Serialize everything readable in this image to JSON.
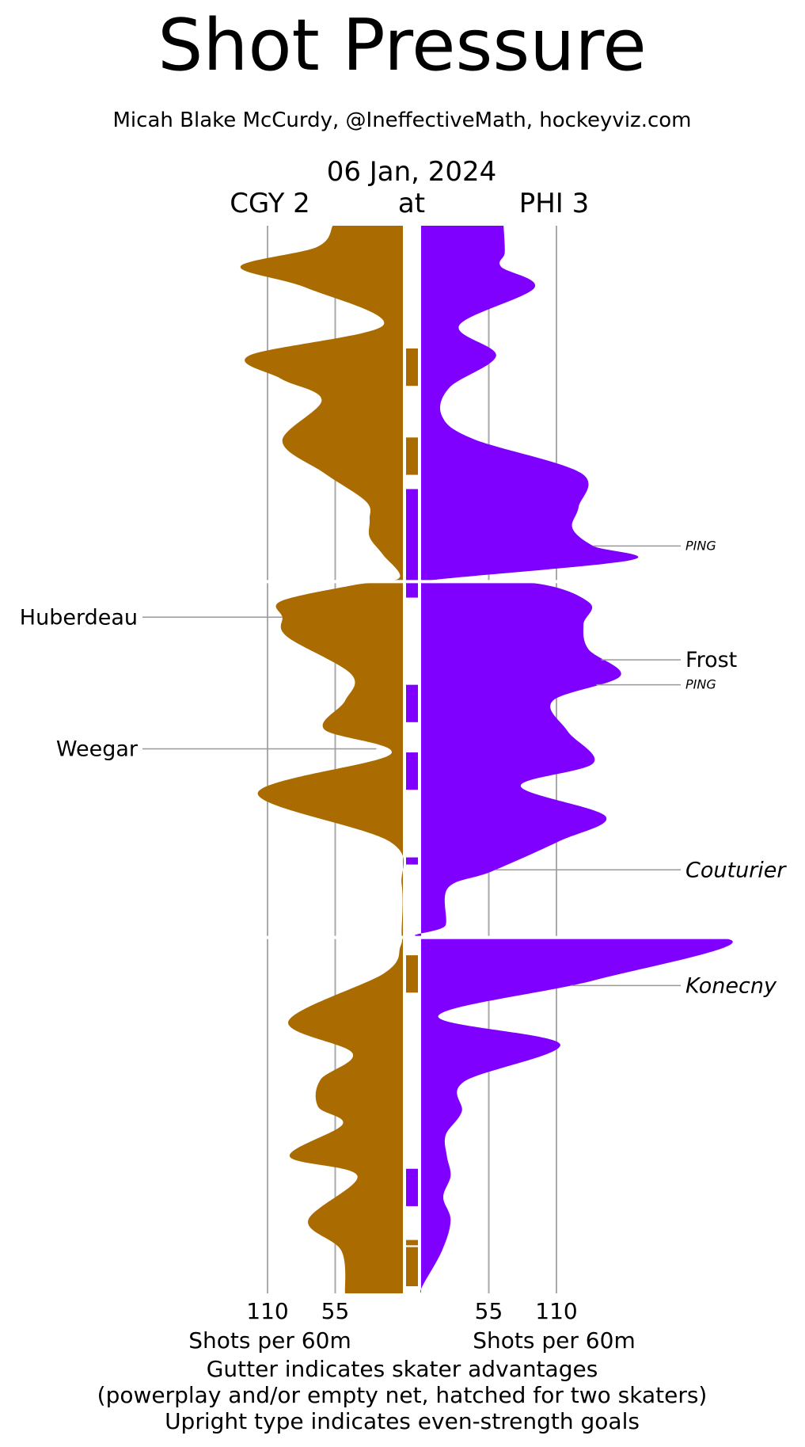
{
  "chart_data": {
    "type": "area",
    "title": "Shot Pressure",
    "subtitle": "Micah Blake McCurdy, @IneffectiveMath, hockeyviz.com",
    "date": "06 Jan, 2024",
    "at_label": "at",
    "teams": {
      "away": {
        "label": "CGY 2",
        "color": "#AA6C00"
      },
      "home": {
        "label": "PHI 3",
        "color": "#8000FF"
      }
    },
    "x_ticks": [
      110,
      55
    ],
    "x_max": 165,
    "xlabel": "Shots per 60m",
    "game_minutes": 60,
    "period_minutes": 20,
    "footer": [
      "Gutter indicates skater advantages",
      "(powerplay and/or empty net, hatched for two skaters)",
      "Upright type indicates even-strength goals"
    ],
    "away_pressure": {
      "t": [
        0,
        1.2,
        2.3,
        3.5,
        5.6,
        7.3,
        8.6,
        9.8,
        12.1,
        13.9,
        15.5,
        16.5,
        17.5,
        18.5,
        19.8,
        20.2,
        21.1,
        22.0,
        23.1,
        25.2,
        26.7,
        28.3,
        29.7,
        31.9,
        34.6,
        37.0,
        39.6,
        40.5,
        42.0,
        44.7,
        46.5,
        48.0,
        49.5,
        50.5,
        52.3,
        53.4,
        55.9,
        57.6,
        60.0
      ],
      "values": [
        57,
        70,
        132,
        78,
        16,
        125,
        99,
        66,
        98,
        64,
        30,
        27,
        27,
        16,
        3,
        40,
        99,
        98,
        94,
        42,
        47,
        64,
        10,
        118,
        11,
        1,
        1,
        2,
        15,
        93,
        41,
        67,
        69,
        49,
        92,
        37,
        77,
        50,
        47
      ]
    },
    "home_pressure": {
      "t": [
        0,
        1.5,
        2.3,
        3.5,
        5.6,
        7.3,
        9.1,
        10.7,
        12.0,
        13.9,
        15.8,
        17.0,
        18.0,
        18.8,
        20.0,
        20.1,
        21.2,
        22.4,
        23.8,
        25.3,
        26.7,
        28.4,
        30.2,
        31.5,
        33.2,
        34.6,
        36.3,
        37.2,
        39.3,
        40.0,
        40.1,
        42.4,
        44.4,
        46.0,
        48.1,
        49.8,
        51.1,
        52.3,
        53.4,
        54.6,
        55.9,
        57.6,
        59.6,
        60.0
      ],
      "values": [
        67,
        68,
        65,
        92,
        31,
        61,
        23,
        17,
        43,
        130,
        128,
        123,
        140,
        170,
        1,
        93,
        137,
        132,
        136,
        162,
        107,
        119,
        140,
        81,
        150,
        112,
        57,
        22,
        20,
        10,
        250,
        141,
        14,
        113,
        35,
        33,
        20,
        21,
        24,
        18,
        24,
        17,
        1,
        0
      ]
    },
    "gutter_away": [
      [
        6.9,
        9.0
      ],
      [
        11.9,
        14.0
      ]
    ],
    "gutter_home": [
      [
        14.8,
        20.9
      ],
      [
        25.8,
        27.9
      ],
      [
        29.6,
        31.7
      ],
      [
        35.5,
        35.9
      ]
    ],
    "gutter_away_p3": [
      [
        41.0,
        43.1
      ],
      [
        57.0,
        57.3
      ],
      [
        57.4,
        59.6
      ]
    ],
    "gutter_home_p3": [
      [
        53.0,
        55.1
      ]
    ],
    "goals": [
      {
        "team": "home",
        "name": "PING",
        "t": 18.0,
        "strength": "ps",
        "small": true
      },
      {
        "team": "away",
        "name": "Huberdeau",
        "t": 22.0,
        "strength": "even"
      },
      {
        "team": "home",
        "name": "Frost",
        "t": 24.4,
        "strength": "even"
      },
      {
        "team": "home",
        "name": "PING",
        "t": 25.8,
        "strength": "ps",
        "small": true
      },
      {
        "team": "away",
        "name": "Weegar",
        "t": 29.4,
        "strength": "even"
      },
      {
        "team": "home",
        "name": "Couturier",
        "t": 36.2,
        "strength": "pp"
      },
      {
        "team": "home",
        "name": "Konecny",
        "t": 42.7,
        "strength": "pp"
      }
    ]
  }
}
